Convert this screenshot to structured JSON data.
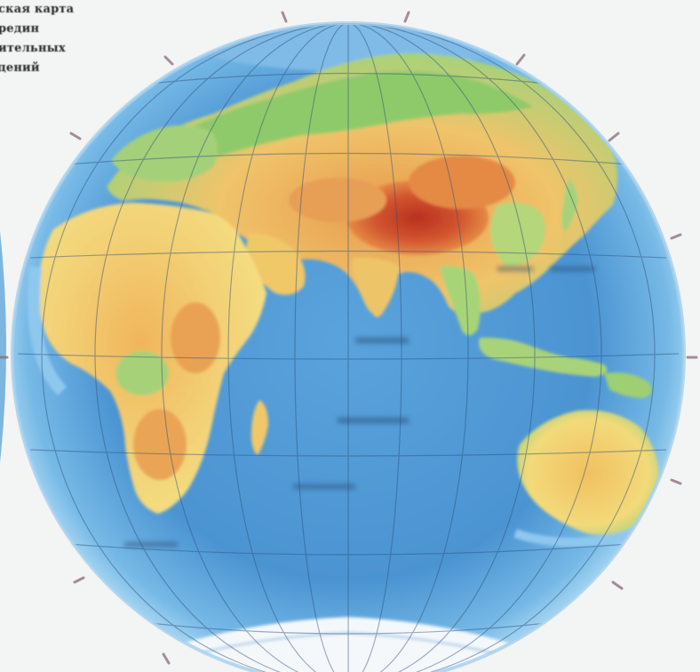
{
  "legend": {
    "lines": [
      "ская карта",
      "редин",
      "ительных",
      "дений"
    ]
  },
  "map": {
    "type": "physical map of the Eastern Hemisphere",
    "colors": {
      "ocean_deep": "#3f8ac9",
      "ocean_shallow": "#8cc6ec",
      "lowland": "#9ccf6e",
      "plain": "#f2e07a",
      "upland": "#f1b258",
      "mountain": "#e07a3a",
      "high_mountain": "#c4402a",
      "ice": "#ffffff",
      "grid": "#2e4f7a"
    }
  },
  "top_label": ""
}
